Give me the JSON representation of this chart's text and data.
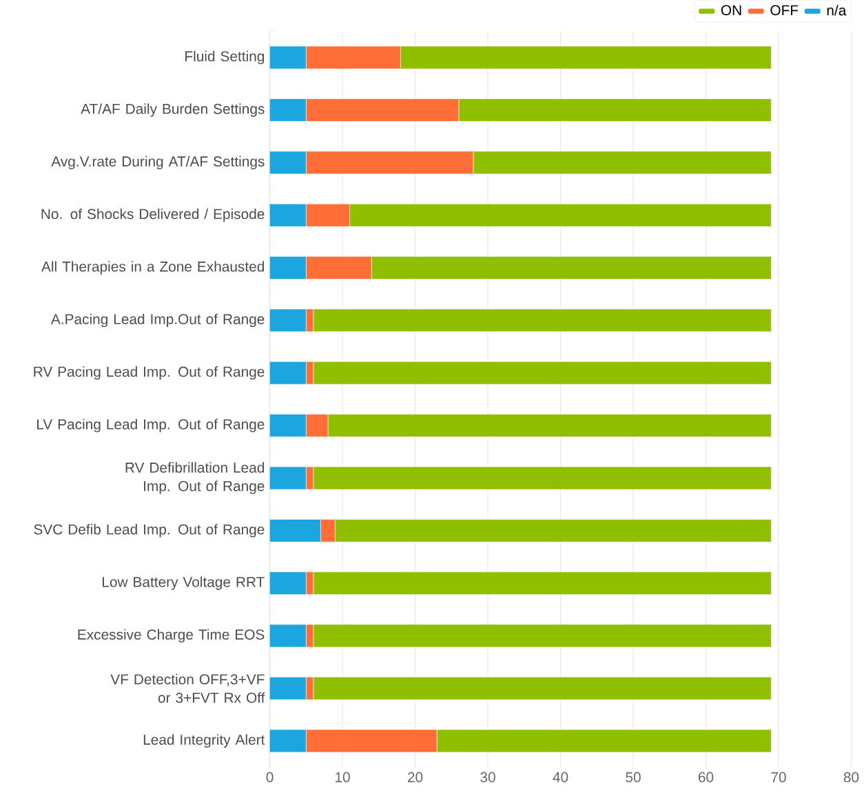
{
  "chart_data": {
    "type": "bar",
    "orientation": "horizontal",
    "stacked": true,
    "grid": "x",
    "legend": "top right",
    "categories": [
      "Fluid Setting",
      "AT/AF Daily Burden Settings",
      "Avg.V.rate During AT/AF Settings",
      "No. of Shocks Delivered / Episode",
      "All Therapies in a Zone Exhausted",
      "A.Pacing Lead Imp.Out of Range",
      "RV Pacing Lead Imp. Out of Range",
      "LV Pacing Lead Imp. Out of Range",
      "RV Defibrillation Lead Imp. Out of Range",
      "SVC Defib Lead Imp. Out of Range",
      "Low Battery Voltage RRT",
      "Excessive Charge Time EOS",
      "VF Detection OFF,3+VF or 3+FVT Rx Off",
      "Lead Integrity Alert"
    ],
    "series": [
      {
        "name": "n/a",
        "color": "#1ba6e0",
        "values": [
          5,
          5,
          5,
          5,
          5,
          5,
          5,
          5,
          5,
          7,
          5,
          5,
          5,
          5
        ]
      },
      {
        "name": "OFF",
        "color": "#ff6e36",
        "values": [
          13,
          21,
          23,
          6,
          9,
          1,
          1,
          3,
          1,
          2,
          1,
          1,
          1,
          18
        ]
      },
      {
        "name": "ON",
        "color": "#90bf00",
        "values": [
          51,
          43,
          41,
          58,
          55,
          63,
          63,
          61,
          63,
          60,
          63,
          63,
          63,
          46
        ]
      }
    ],
    "xlim": [
      0,
      80
    ],
    "xticks": [
      0,
      10,
      20,
      30,
      40,
      50,
      60,
      70,
      80
    ]
  }
}
